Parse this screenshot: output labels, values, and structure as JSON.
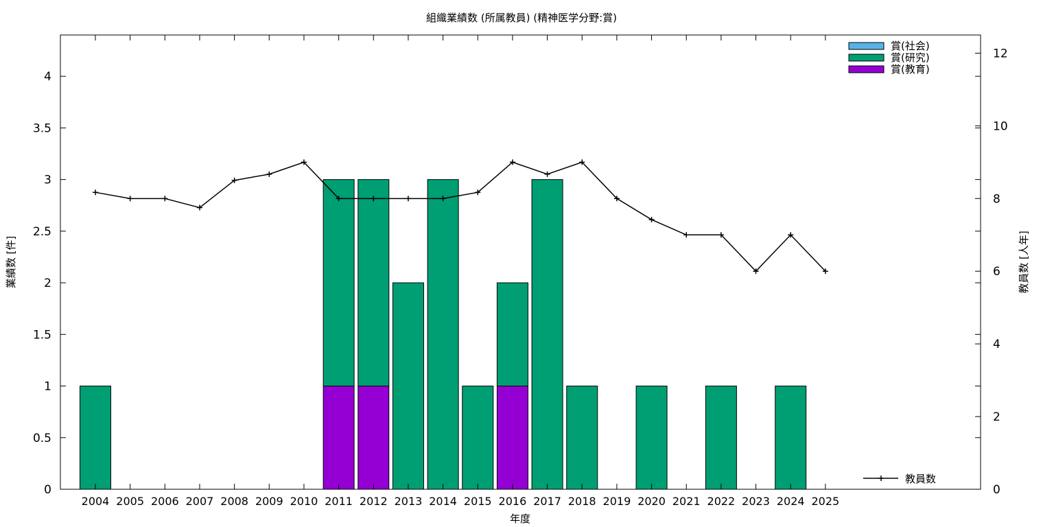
{
  "chart_data": {
    "type": "bar",
    "title": "組織業績数 (所属教員) (精神医学分野:賞)",
    "xlabel": "年度",
    "ylabel": "業績数 [件]",
    "y2label": "教員数 [人年]",
    "categories": [
      "2004",
      "2005",
      "2006",
      "2007",
      "2008",
      "2009",
      "2010",
      "2011",
      "2012",
      "2013",
      "2014",
      "2015",
      "2016",
      "2017",
      "2018",
      "2019",
      "2020",
      "2021",
      "2022",
      "2023",
      "2024",
      "2025"
    ],
    "ylim": [
      0,
      4.4
    ],
    "yticks": [
      "0",
      "0.5",
      "1",
      "1.5",
      "2",
      "2.5",
      "3",
      "3.5",
      "4"
    ],
    "y2lim": [
      0,
      12.5
    ],
    "y2ticks": [
      "0",
      "2",
      "4",
      "6",
      "8",
      "10",
      "12"
    ],
    "stacked": true,
    "legend_position": "top-right",
    "series": [
      {
        "name": "賞(教育)",
        "color": "#9400d3",
        "values": [
          0,
          0,
          0,
          0,
          0,
          0,
          0,
          1,
          1,
          0,
          0,
          0,
          1,
          0,
          0,
          0,
          0,
          0,
          0,
          0,
          0,
          0
        ]
      },
      {
        "name": "賞(研究)",
        "color": "#009e73",
        "values": [
          1,
          0,
          0,
          0,
          0,
          0,
          0,
          2,
          2,
          2,
          3,
          1,
          1,
          3,
          1,
          0,
          1,
          0,
          1,
          0,
          1,
          0
        ]
      },
      {
        "name": "賞(社会)",
        "color": "#56b4e9",
        "values": [
          0,
          0,
          0,
          0,
          0,
          0,
          0,
          0,
          0,
          0,
          0,
          0,
          0,
          0,
          0,
          0,
          0,
          0,
          0,
          0,
          0,
          0
        ]
      }
    ],
    "legend_order": [
      "賞(社会)",
      "賞(研究)",
      "賞(教育)"
    ],
    "line_series": {
      "name": "教員数",
      "axis": "y2",
      "color": "#000000",
      "legend_position": "bottom-right",
      "values": [
        8.17,
        8.0,
        8.0,
        7.75,
        8.5,
        8.67,
        9.0,
        8.0,
        8.0,
        8.0,
        8.0,
        8.17,
        9.0,
        8.67,
        9.0,
        8.0,
        7.42,
        7.0,
        7.0,
        6.0,
        7.0,
        6.0
      ]
    }
  }
}
